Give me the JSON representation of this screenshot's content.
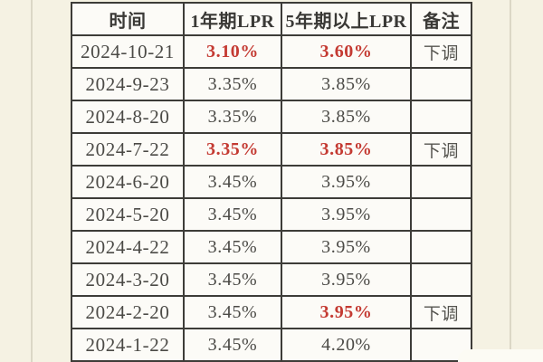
{
  "page": {
    "background_color": "#f5f2e3",
    "cell_background": "#fcfbf7",
    "border_color": "#3d3c38",
    "text_color": "#4b4a46",
    "accent_red": "#c43a32"
  },
  "chart_data": {
    "type": "table",
    "columns": [
      "时间",
      "1年期LPR",
      "5年期以上LPR",
      "备注"
    ],
    "rows": [
      {
        "date": "2024-10-21",
        "lpr1": "3.10%",
        "lpr1_red": true,
        "lpr5": "3.60%",
        "lpr5_red": true,
        "remark": "下调"
      },
      {
        "date": "2024-9-23",
        "lpr1": "3.35%",
        "lpr1_red": false,
        "lpr5": "3.85%",
        "lpr5_red": false,
        "remark": ""
      },
      {
        "date": "2024-8-20",
        "lpr1": "3.35%",
        "lpr1_red": false,
        "lpr5": "3.85%",
        "lpr5_red": false,
        "remark": ""
      },
      {
        "date": "2024-7-22",
        "lpr1": "3.35%",
        "lpr1_red": true,
        "lpr5": "3.85%",
        "lpr5_red": true,
        "remark": "下调"
      },
      {
        "date": "2024-6-20",
        "lpr1": "3.45%",
        "lpr1_red": false,
        "lpr5": "3.95%",
        "lpr5_red": false,
        "remark": ""
      },
      {
        "date": "2024-5-20",
        "lpr1": "3.45%",
        "lpr1_red": false,
        "lpr5": "3.95%",
        "lpr5_red": false,
        "remark": ""
      },
      {
        "date": "2024-4-22",
        "lpr1": "3.45%",
        "lpr1_red": false,
        "lpr5": "3.95%",
        "lpr5_red": false,
        "remark": ""
      },
      {
        "date": "2024-3-20",
        "lpr1": "3.45%",
        "lpr1_red": false,
        "lpr5": "3.95%",
        "lpr5_red": false,
        "remark": ""
      },
      {
        "date": "2024-2-20",
        "lpr1": "3.45%",
        "lpr1_red": false,
        "lpr5": "3.95%",
        "lpr5_red": true,
        "remark": "下调"
      },
      {
        "date": "2024-1-22",
        "lpr1": "3.45%",
        "lpr1_red": false,
        "lpr5": "4.20%",
        "lpr5_red": false,
        "remark": ""
      }
    ]
  }
}
